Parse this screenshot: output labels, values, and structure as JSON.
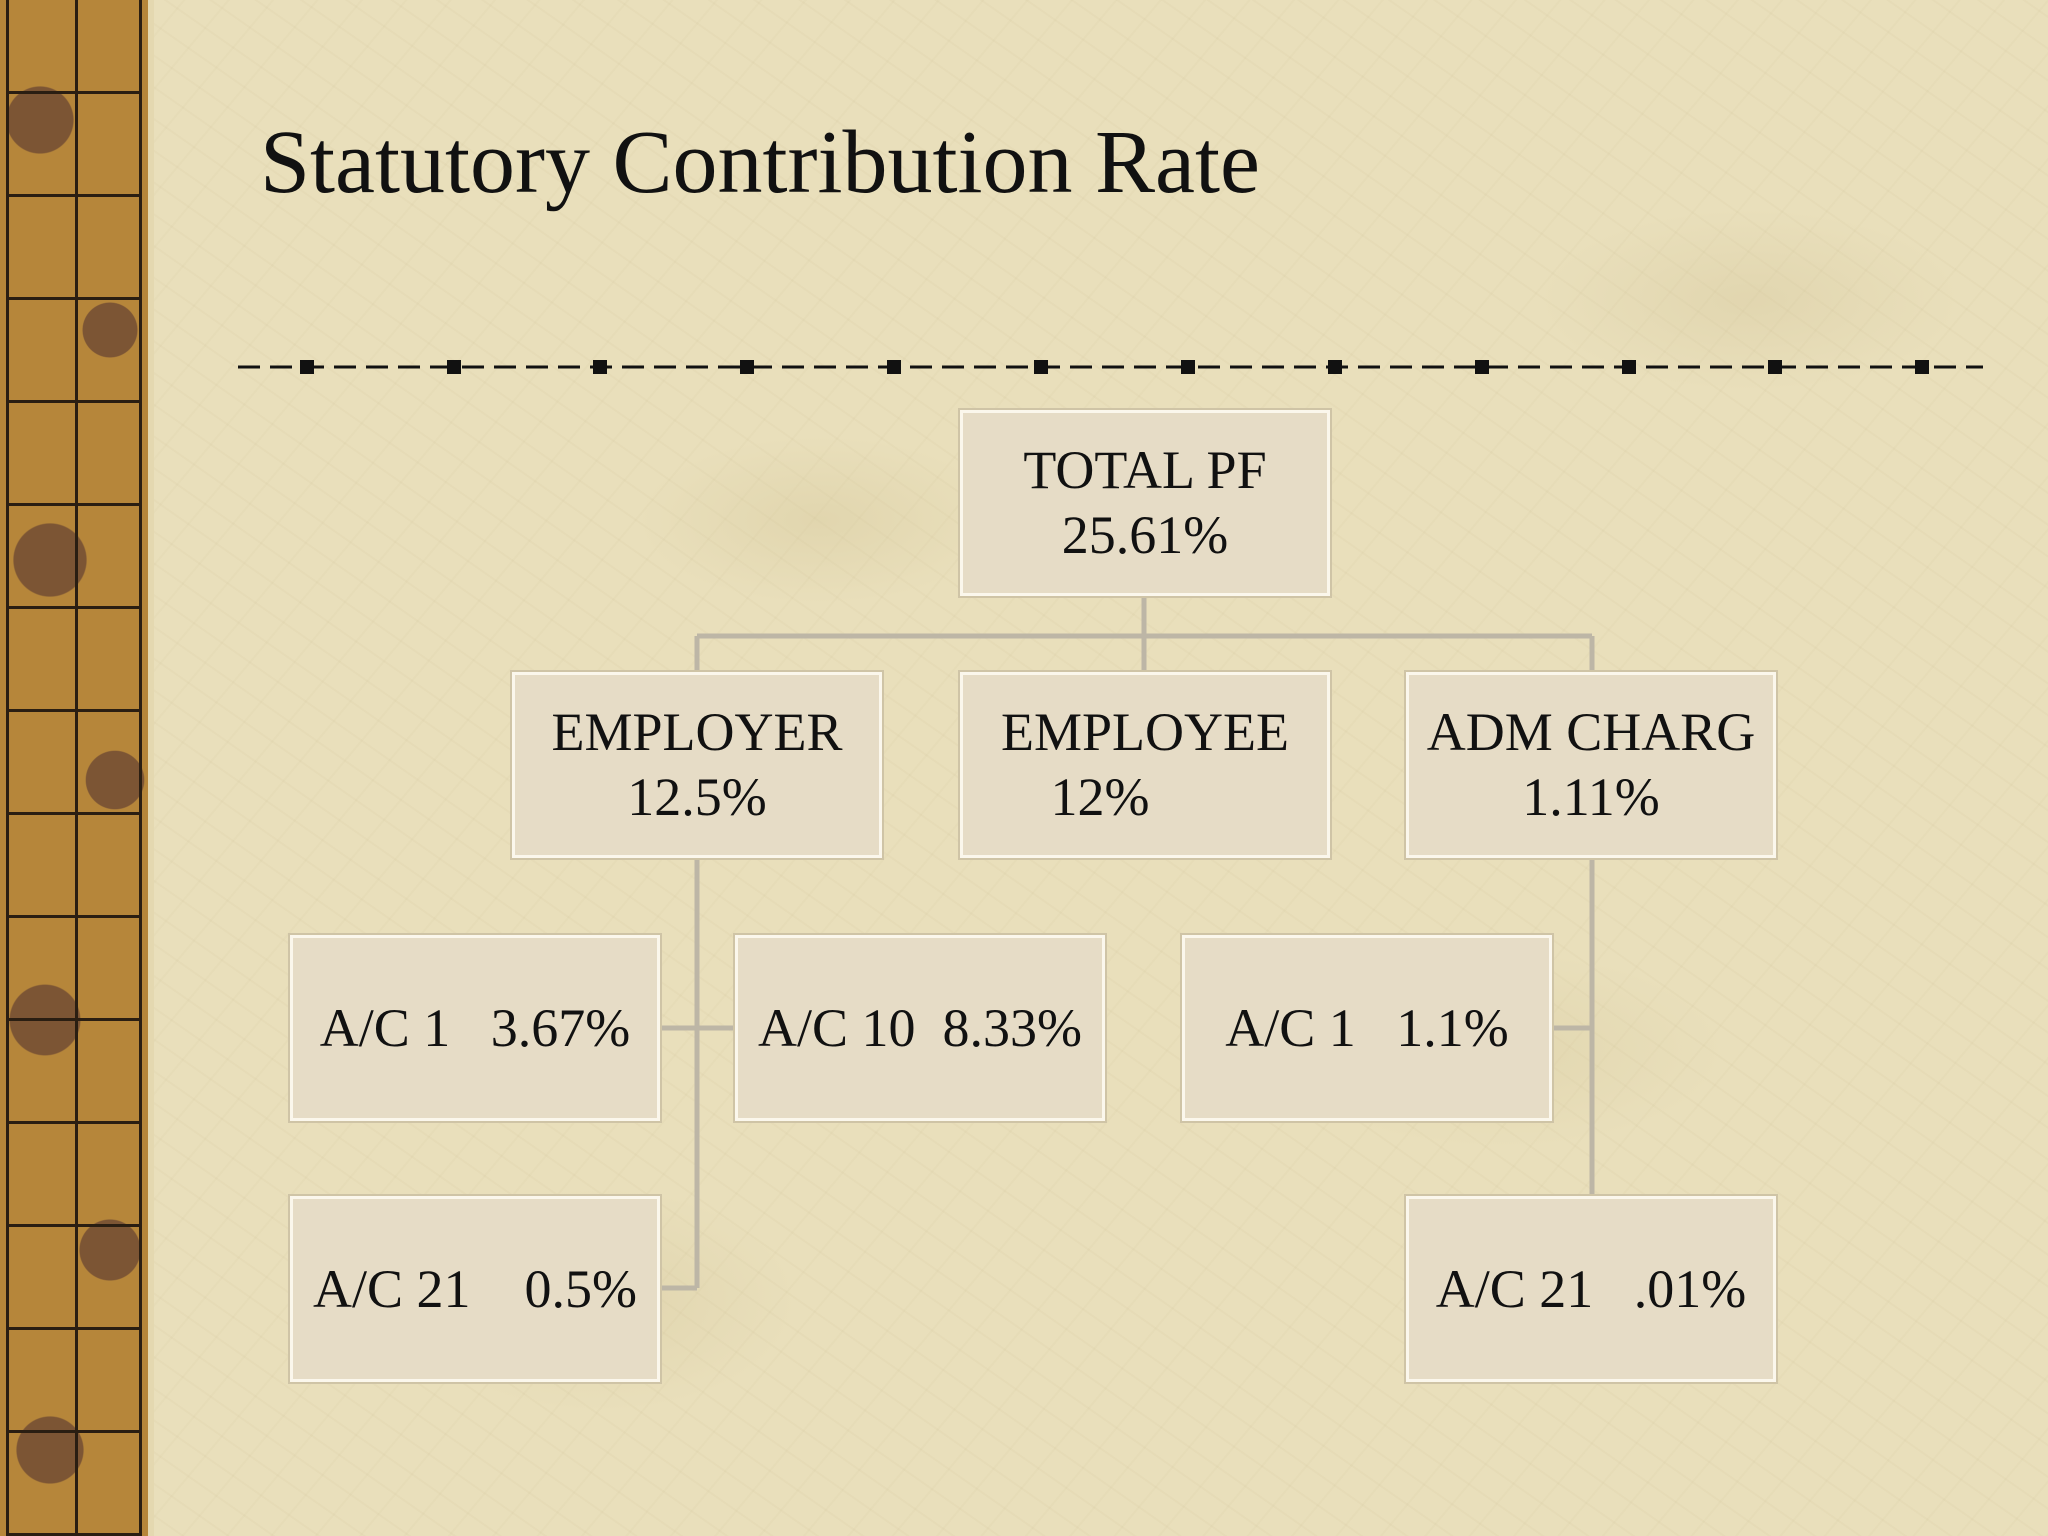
{
  "slide": {
    "title": "Statutory Contribution Rate"
  },
  "chart": {
    "root": {
      "label": "TOTAL PF",
      "value": "25.61%"
    },
    "branches": [
      {
        "label": "EMPLOYER",
        "value": "12.5%",
        "children": [
          {
            "text": "A/C 1   3.67%"
          },
          {
            "text": "A/C 10  8.33%"
          },
          {
            "text": "A/C 21    0.5%"
          }
        ]
      },
      {
        "label": "EMPLOYEE",
        "value": "12%",
        "children": []
      },
      {
        "label": "ADM CHARG",
        "value": "1.11%",
        "children": [
          {
            "text": "A/C 1   1.1%"
          },
          {
            "text": "A/C 21   .01%"
          }
        ]
      }
    ]
  },
  "colors": {
    "background": "#e9dfbb",
    "box_fill": "#e6dcc6",
    "connector": "#bdb6a6",
    "text": "#111111"
  }
}
